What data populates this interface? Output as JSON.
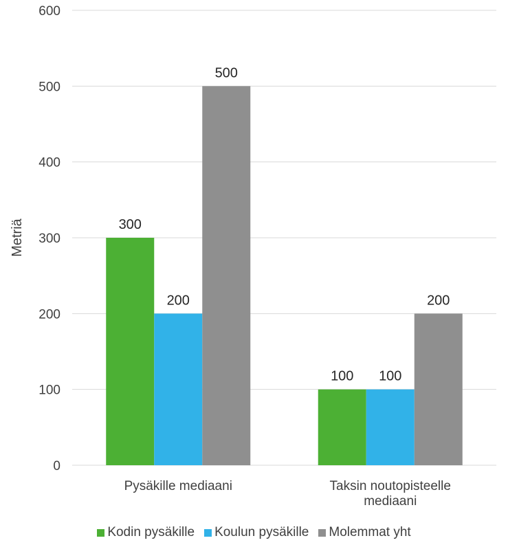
{
  "chart_data": {
    "type": "bar",
    "categories": [
      "Pysäkille mediaani",
      "Taksin noutopisteelle mediaani"
    ],
    "category_lines": [
      [
        "Pysäkille mediaani"
      ],
      [
        "Taksin noutopisteelle",
        "mediaani"
      ]
    ],
    "series": [
      {
        "name": "Kodin pysäkille",
        "values": [
          300,
          100
        ],
        "color": "#4CB034"
      },
      {
        "name": "Koulun pysäkille",
        "values": [
          200,
          100
        ],
        "color": "#31B2E8"
      },
      {
        "name": "Molemmat yht",
        "values": [
          500,
          200
        ],
        "color": "#8F8F8F"
      }
    ],
    "title": "",
    "xlabel": "",
    "ylabel": "Metriä",
    "ylim": [
      0,
      600
    ],
    "yticks": [
      0,
      100,
      200,
      300,
      400,
      500,
      600
    ],
    "data_labels": true,
    "grid": true,
    "legend": "bottom"
  }
}
